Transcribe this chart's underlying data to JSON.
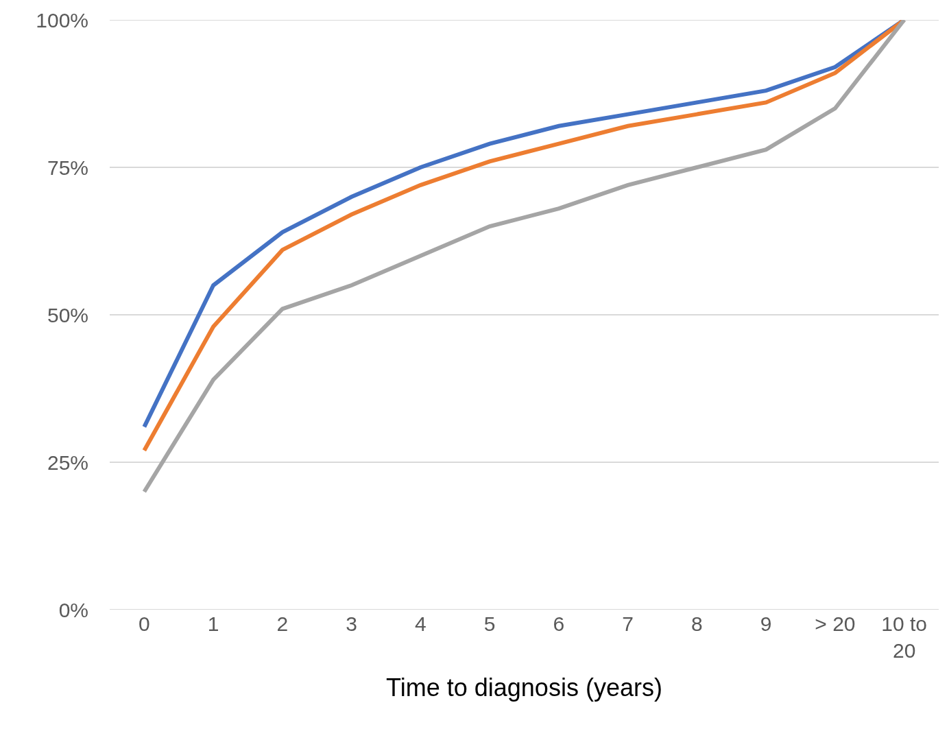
{
  "chart_data": {
    "type": "line",
    "xlabel": "Time to diagnosis (years)",
    "categories": [
      "0",
      "1",
      "2",
      "3",
      "4",
      "5",
      "6",
      "7",
      "8",
      "9",
      "> 20",
      "10 to 20"
    ],
    "series": [
      {
        "color": "#4472c4",
        "values": [
          31,
          55,
          64,
          70,
          75,
          79,
          82,
          84,
          86,
          88,
          92,
          100
        ]
      },
      {
        "color": "#ed7d31",
        "values": [
          27,
          48,
          61,
          67,
          72,
          76,
          79,
          82,
          84,
          86,
          91,
          100
        ]
      },
      {
        "color": "#a5a5a5",
        "values": [
          20,
          39,
          51,
          55,
          60,
          65,
          68,
          72,
          75,
          78,
          85,
          100
        ]
      }
    ],
    "ylim": [
      0,
      100
    ],
    "yticks": [
      {
        "value": 0,
        "label": "0%"
      },
      {
        "value": 25,
        "label": "25%"
      },
      {
        "value": 50,
        "label": "50%"
      },
      {
        "value": 75,
        "label": "75%"
      },
      {
        "value": 100,
        "label": "100%"
      }
    ],
    "grid": "y",
    "marker": "none",
    "line_style": "solid"
  }
}
